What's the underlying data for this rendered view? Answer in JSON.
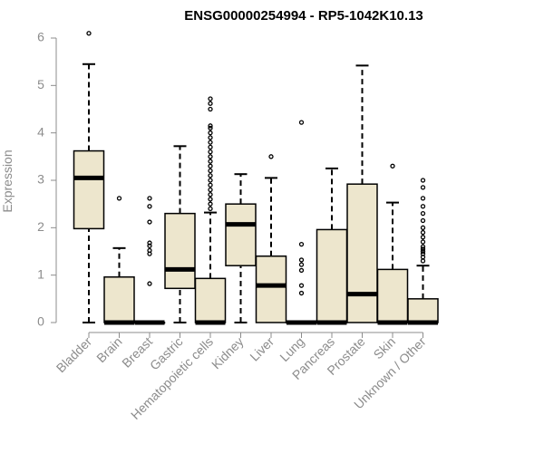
{
  "chart_data": {
    "type": "box",
    "title": "ENSG00000254994 - RP5-1042K10.13",
    "xlabel": "",
    "ylabel": "Expression",
    "ylim": [
      0,
      6.3
    ],
    "yticks": [
      "0",
      "1",
      "2",
      "3",
      "4",
      "5",
      "6"
    ],
    "grid": false,
    "colors": {
      "box_fill": "#ede6cd",
      "stroke": "#000000",
      "axis_text": "#8c8c8c"
    },
    "categories": [
      "Bladder",
      "Brain",
      "Breast",
      "Gastric",
      "Hematopoietic cells",
      "Kidney",
      "Liver",
      "Lung",
      "Pancreas",
      "Prostate",
      "Skin",
      "Unknown / Other"
    ],
    "boxes": [
      {
        "category": "Bladder",
        "min": 0,
        "q1": 1.98,
        "median": 3.05,
        "q3": 3.62,
        "max": 5.45,
        "outliers": [
          6.1
        ]
      },
      {
        "category": "Brain",
        "min": 0,
        "q1": 0,
        "median": 0,
        "q3": 0.96,
        "max": 1.57,
        "outliers": [
          2.62
        ]
      },
      {
        "category": "Breast",
        "min": 0,
        "q1": 0,
        "median": 0,
        "q3": 0,
        "max": 0,
        "outliers": [
          0.82,
          1.45,
          1.52,
          1.62,
          1.68,
          2.12,
          2.45,
          2.62
        ]
      },
      {
        "category": "Gastric",
        "min": 0,
        "q1": 0.72,
        "median": 1.12,
        "q3": 2.3,
        "max": 3.72,
        "outliers": []
      },
      {
        "category": "Hematopoietic cells",
        "min": 0,
        "q1": 0,
        "median": 0,
        "q3": 0.93,
        "max": 2.32,
        "outliers": [
          2.4,
          2.5,
          2.6,
          2.7,
          2.8,
          2.9,
          3.0,
          3.1,
          3.2,
          3.3,
          3.4,
          3.5,
          3.6,
          3.7,
          3.8,
          3.9,
          4.0,
          4.1,
          4.15,
          4.5,
          4.62,
          4.72
        ]
      },
      {
        "category": "Kidney",
        "min": 0,
        "q1": 1.2,
        "median": 2.07,
        "q3": 2.5,
        "max": 3.13,
        "outliers": []
      },
      {
        "category": "Liver",
        "min": 0,
        "q1": 0,
        "median": 0.78,
        "q3": 1.4,
        "max": 3.05,
        "outliers": [
          3.5
        ]
      },
      {
        "category": "Lung",
        "min": 0,
        "q1": 0,
        "median": 0,
        "q3": 0,
        "max": 0,
        "outliers": [
          0.62,
          0.78,
          1.1,
          1.22,
          1.32,
          1.65,
          4.22
        ]
      },
      {
        "category": "Pancreas",
        "min": 0,
        "q1": 0,
        "median": 0,
        "q3": 1.96,
        "max": 3.25,
        "outliers": []
      },
      {
        "category": "Prostate",
        "min": 0,
        "q1": 0,
        "median": 0.6,
        "q3": 2.92,
        "max": 5.42,
        "outliers": []
      },
      {
        "category": "Skin",
        "min": 0,
        "q1": 0,
        "median": 0,
        "q3": 1.12,
        "max": 2.53,
        "outliers": [
          3.3
        ]
      },
      {
        "category": "Unknown / Other",
        "min": 0,
        "q1": 0,
        "median": 0,
        "q3": 0.5,
        "max": 1.2,
        "outliers": [
          1.3,
          1.38,
          1.45,
          1.5,
          1.55,
          1.6,
          1.7,
          1.8,
          1.9,
          2.0,
          2.15,
          2.3,
          2.45,
          2.62,
          2.85,
          3.0
        ]
      }
    ]
  }
}
